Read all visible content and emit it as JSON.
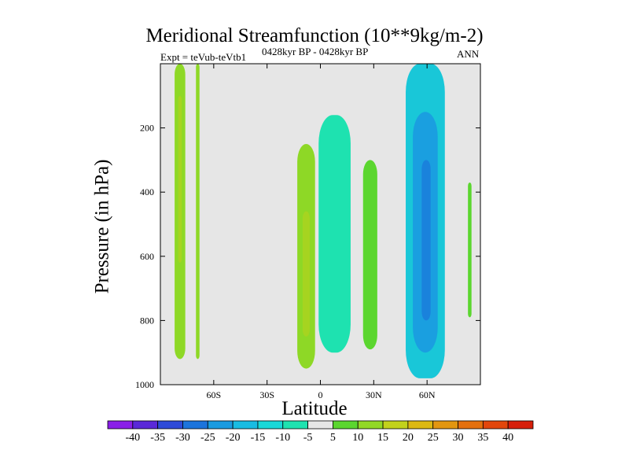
{
  "chart_data": {
    "type": "contour",
    "title": "Meridional Streamfunction (10**9kg/m-2)",
    "subtitle": "0428kyr BP - 0428kyr BP",
    "left_label": "Expt = teVub-teVtb1",
    "right_label": "ANN",
    "xlabel": "Latitude",
    "ylabel": "Pressure (in hPa)",
    "x_ticks": [
      {
        "value": -60,
        "label": "60S"
      },
      {
        "value": -30,
        "label": "30S"
      },
      {
        "value": 0,
        "label": "0"
      },
      {
        "value": 30,
        "label": "30N"
      },
      {
        "value": 60,
        "label": "60N"
      }
    ],
    "y_ticks": [
      {
        "value": 200,
        "label": "200"
      },
      {
        "value": 400,
        "label": "400"
      },
      {
        "value": 600,
        "label": "600"
      },
      {
        "value": 800,
        "label": "800"
      },
      {
        "value": 1000,
        "label": "1000"
      }
    ],
    "xlim": [
      -90,
      90
    ],
    "ylim": [
      1000,
      0
    ],
    "y_inverted": true,
    "background_color": "#e6e6e6",
    "colorbar": {
      "levels": [
        -40,
        -35,
        -30,
        -25,
        -20,
        -15,
        -10,
        -5,
        5,
        10,
        15,
        20,
        25,
        30,
        35,
        40
      ],
      "colors": [
        "#8a1ee8",
        "#5a28d8",
        "#2e4ad8",
        "#1c74dc",
        "#1a9be0",
        "#18bce2",
        "#19d8d8",
        "#1ee2b0",
        "#e6e6e6",
        "#5bd62f",
        "#92d826",
        "#c2d21c",
        "#dcb812",
        "#e29610",
        "#e4700e",
        "#e2460c",
        "#d61e0a"
      ]
    },
    "regions": [
      {
        "name": "south-polar-band",
        "level": "5 to 10",
        "color": "#8ed826",
        "lat": [
          -82,
          -76
        ],
        "p": [
          0,
          920
        ]
      },
      {
        "name": "south-polar-core",
        "level": "10 to 15",
        "color": "#a6d420",
        "lat": [
          -80,
          -78
        ],
        "p": [
          100,
          620
        ]
      },
      {
        "name": "south-subpolar-band",
        "level": "5 to 10",
        "color": "#8ed826",
        "lat": [
          -70,
          -68
        ],
        "p": [
          0,
          920
        ]
      },
      {
        "name": "southern-tropics",
        "level": "5 to 10",
        "color": "#8ed826",
        "lat": [
          -13,
          -3
        ],
        "p": [
          250,
          950
        ]
      },
      {
        "name": "southern-tropics-core",
        "level": "10 to 15",
        "color": "#a6d420",
        "lat": [
          -10,
          -6
        ],
        "p": [
          460,
          850
        ]
      },
      {
        "name": "equatorial-cell",
        "level": "-10 to -5",
        "color": "#1ee2b0",
        "lat": [
          -1,
          17
        ],
        "p": [
          160,
          900
        ]
      },
      {
        "name": "northern-tropics",
        "level": "5 to 10",
        "color": "#5bd62f",
        "lat": [
          24,
          32
        ],
        "p": [
          300,
          890
        ]
      },
      {
        "name": "north-midlat-cell",
        "level": "-15 to -10",
        "color": "#19c7d8",
        "lat": [
          48,
          70
        ],
        "p": [
          0,
          980
        ]
      },
      {
        "name": "north-midlat-core",
        "level": "-20 to -15",
        "color": "#1a9fe0",
        "lat": [
          52,
          66
        ],
        "p": [
          150,
          900
        ]
      },
      {
        "name": "north-midlat-inner",
        "level": "-25 to -20",
        "color": "#1a82dc",
        "lat": [
          57,
          62
        ],
        "p": [
          300,
          800
        ]
      },
      {
        "name": "north-polar-sliver",
        "level": "5 to 10",
        "color": "#5bd62f",
        "lat": [
          83,
          85
        ],
        "p": [
          370,
          790
        ]
      }
    ]
  }
}
